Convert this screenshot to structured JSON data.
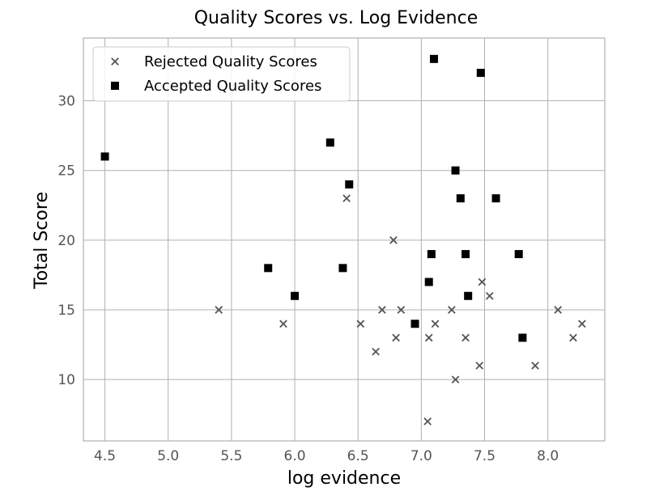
{
  "chart_data": {
    "type": "scatter",
    "title": "Quality Scores vs. Log Evidence",
    "xlabel": "log evidence",
    "ylabel": "Total Score",
    "xlim": [
      4.33,
      8.45
    ],
    "ylim": [
      5.6,
      34.5
    ],
    "xticks": [
      "4.5",
      "5.0",
      "5.5",
      "6.0",
      "6.5",
      "7.0",
      "7.5",
      "8.0"
    ],
    "yticks": [
      "10",
      "15",
      "20",
      "25",
      "30"
    ],
    "grid": true,
    "legend_position": "top-left",
    "series": [
      {
        "name": "Rejected Quality Scores",
        "marker": "x",
        "color": "#555555",
        "points": [
          [
            5.4,
            15
          ],
          [
            5.91,
            14
          ],
          [
            6.41,
            23
          ],
          [
            6.52,
            14
          ],
          [
            6.64,
            12
          ],
          [
            6.69,
            15
          ],
          [
            6.78,
            20
          ],
          [
            6.8,
            13
          ],
          [
            6.84,
            15
          ],
          [
            7.05,
            7
          ],
          [
            7.06,
            13
          ],
          [
            7.11,
            14
          ],
          [
            7.24,
            15
          ],
          [
            7.27,
            10
          ],
          [
            7.35,
            13
          ],
          [
            7.46,
            11
          ],
          [
            7.48,
            17
          ],
          [
            7.54,
            16
          ],
          [
            7.9,
            11
          ],
          [
            8.08,
            15
          ],
          [
            8.2,
            13
          ],
          [
            8.27,
            14
          ]
        ]
      },
      {
        "name": "Accepted Quality Scores",
        "marker": "s",
        "color": "#000000",
        "points": [
          [
            4.5,
            26
          ],
          [
            5.79,
            18
          ],
          [
            6.0,
            16
          ],
          [
            6.28,
            27
          ],
          [
            6.38,
            18
          ],
          [
            6.43,
            24
          ],
          [
            6.95,
            14
          ],
          [
            7.06,
            17
          ],
          [
            7.08,
            19
          ],
          [
            7.1,
            33
          ],
          [
            7.27,
            25
          ],
          [
            7.31,
            23
          ],
          [
            7.35,
            19
          ],
          [
            7.37,
            16
          ],
          [
            7.47,
            32
          ],
          [
            7.59,
            23
          ],
          [
            7.77,
            19
          ],
          [
            7.8,
            13
          ]
        ]
      }
    ]
  }
}
